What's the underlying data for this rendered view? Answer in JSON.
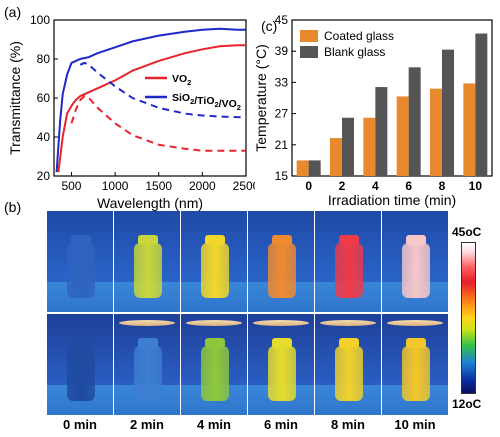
{
  "panel_a_label": "(a)",
  "panel_b_label": "(b)",
  "panel_c_label": "(c)",
  "chart_data": [
    {
      "type": "line",
      "xlabel": "Wavelength (nm)",
      "ylabel": "Transmittance (%)",
      "xlim": [
        300,
        2500
      ],
      "ylim": [
        20,
        100
      ],
      "xticks": [
        500,
        1000,
        1500,
        2000,
        2500
      ],
      "yticks": [
        20,
        40,
        60,
        80,
        100
      ],
      "legend_placement": "center-right",
      "series": [
        {
          "name": "VO2",
          "color": "#e8232b",
          "style": "solid",
          "x": [
            350,
            400,
            450,
            500,
            550,
            600,
            700,
            800,
            1000,
            1200,
            1500,
            1800,
            2000,
            2200,
            2400,
            2500
          ],
          "y": [
            22,
            40,
            52,
            56,
            59,
            61,
            63,
            65,
            69,
            74,
            79,
            83,
            85,
            86.5,
            87,
            87
          ]
        },
        {
          "name": "VO2 dashed",
          "color": "#e8232b",
          "style": "dashed",
          "x": [
            500,
            550,
            600,
            650,
            700,
            800,
            1000,
            1200,
            1500,
            1800,
            2000,
            2200,
            2500
          ],
          "y": [
            47,
            54,
            59,
            61,
            60,
            55,
            47,
            41,
            36,
            34,
            33,
            33,
            33
          ]
        },
        {
          "name": "SiO2/TiO2/VO2",
          "color": "#1e27c8",
          "style": "solid",
          "x": [
            330,
            370,
            400,
            450,
            500,
            600,
            700,
            800,
            1000,
            1200,
            1500,
            1800,
            2000,
            2200,
            2400,
            2500
          ],
          "y": [
            22,
            48,
            62,
            72,
            78,
            80,
            81,
            83,
            86,
            89,
            92,
            94,
            95,
            95.5,
            95,
            95
          ]
        },
        {
          "name": "SiO2/TiO2/VO2 dashed",
          "color": "#1e27c8",
          "style": "dashed",
          "x": [
            600,
            650,
            700,
            800,
            1000,
            1200,
            1500,
            1800,
            2000,
            2200,
            2500
          ],
          "y": [
            77,
            78,
            77,
            73,
            66,
            60,
            55,
            52,
            51,
            50.5,
            50
          ]
        }
      ],
      "legend": [
        {
          "label": "VO",
          "sub": "2",
          "color": "#e8232b"
        },
        {
          "label": "SiO",
          "sub": "2",
          "mid": "/TiO",
          "sub2": "2",
          "end": "/VO",
          "sub3": "2",
          "color": "#1e27c8"
        }
      ]
    },
    {
      "type": "bar",
      "xlabel": "Irradiation time (min)",
      "ylabel": "Temperature (°C)",
      "ylim": [
        15,
        45
      ],
      "yticks": [
        15,
        21,
        27,
        33,
        39,
        45
      ],
      "categories": [
        "0",
        "2",
        "4",
        "6",
        "8",
        "10"
      ],
      "legend_placement": "top-left",
      "series": [
        {
          "name": "Coated glass",
          "color": "#e8892e",
          "values": [
            18,
            22.3,
            26.2,
            30.3,
            31.8,
            32.8
          ]
        },
        {
          "name": "Blank glass",
          "color": "#555555",
          "values": [
            18,
            26.2,
            32.1,
            35.9,
            39.3,
            42.4
          ]
        }
      ]
    }
  ],
  "thermal": {
    "times": [
      "0 min",
      "2 min",
      "4 min",
      "6 min",
      "8 min",
      "10 min"
    ],
    "colorbar_max": "45oC",
    "colorbar_min": "12oC",
    "top_row_colors": [
      "#2f63c0",
      "#c9d63a",
      "#f2d62a",
      "#f08a30",
      "#ef3a48",
      "#f6c6c8"
    ],
    "bottom_row_colors": [
      "#1e4aa0",
      "#3c7ed2",
      "#8fc73c",
      "#e6dc2c",
      "#f0d22a",
      "#f3c62a"
    ]
  }
}
